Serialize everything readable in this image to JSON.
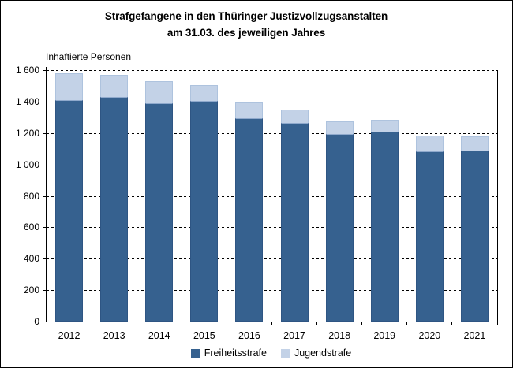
{
  "title": {
    "line1": "Strafgefangene in den Thüringer Justizvollzugsanstalten",
    "line2": "am 31.03. des jeweiligen Jahres"
  },
  "chart_data": {
    "type": "bar",
    "stacked": true,
    "title": "Strafgefangene in den Thüringer Justizvollzugsanstalten am 31.03. des jeweiligen Jahres",
    "axis_top_label": "Inhaftierte Personen",
    "categories": [
      "2012",
      "2013",
      "2014",
      "2015",
      "2016",
      "2017",
      "2018",
      "2019",
      "2020",
      "2021"
    ],
    "series": [
      {
        "name": "Freiheitsstrafe",
        "color": "#36618F",
        "values": [
          1410,
          1430,
          1389,
          1403,
          1293,
          1262,
          1193,
          1208,
          1084,
          1089
        ]
      },
      {
        "name": "Jugendstrafe",
        "color": "#C3D2E7",
        "values": [
          172,
          142,
          141,
          102,
          100,
          90,
          82,
          77,
          100,
          88
        ]
      }
    ],
    "totals": [
      1582,
      1572,
      1530,
      1505,
      1393,
      1352,
      1275,
      1285,
      1184,
      1177
    ],
    "xlabel": "",
    "ylabel": "Inhaftierte Personen",
    "ylim": [
      0,
      1600
    ],
    "ytick_step": 200,
    "ytick_labels": [
      "1 600",
      "1 400",
      "1 200",
      "1 000",
      "800",
      "600",
      "400",
      "200",
      "0"
    ],
    "grid": "horizontal-dashed",
    "legend_position": "bottom",
    "axis_color": "#000000",
    "background_color": "#FFFFFF"
  }
}
